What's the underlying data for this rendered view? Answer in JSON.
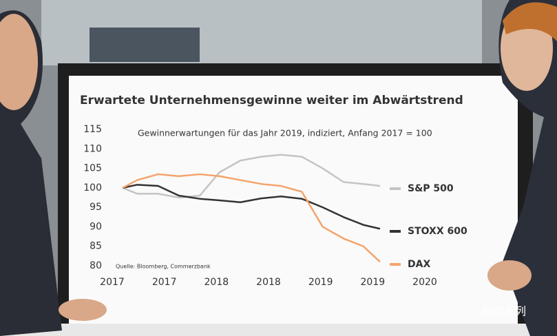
{
  "chart_data": {
    "type": "line",
    "title": "Erwartete Unternehmensgewinne weiter im Abwärtstrend",
    "subtitle": "Gewinnerwartungen für das Jahr 2019, indiziert, Anfang 2017 = 100",
    "source": "Quelle: Bloomberg, Commerzbank",
    "watermark": "微观系列",
    "x": [
      2017.1,
      2017.24,
      2017.44,
      2017.64,
      2017.84,
      2018.03,
      2018.23,
      2018.43,
      2018.62,
      2018.82,
      2019.02,
      2019.22,
      2019.41,
      2019.57
    ],
    "series": [
      {
        "name": "S&P 500",
        "color": "#c4c4c4",
        "values": [
          100,
          98.5,
          98.5,
          97.5,
          98,
          104,
          107,
          108,
          108.5,
          108,
          105,
          101.5,
          101,
          100.5
        ]
      },
      {
        "name": "STOXX 600",
        "color": "#333333",
        "values": [
          100,
          100.8,
          100.5,
          98,
          97.2,
          96.8,
          96.3,
          97.3,
          97.8,
          97.2,
          95,
          92.5,
          90.5,
          89.5
        ]
      },
      {
        "name": "DAX",
        "color": "#f4a46b",
        "values": [
          100,
          102,
          103.5,
          103,
          103.5,
          103,
          102,
          101,
          100.5,
          99,
          90,
          87,
          85,
          81
        ]
      }
    ],
    "xlim": [
      2017,
      2020
    ],
    "xticks": [
      {
        "value": 2017,
        "label": "2017"
      },
      {
        "value": 2017.5,
        "label": "2017"
      },
      {
        "value": 2018,
        "label": "2018"
      },
      {
        "value": 2018.5,
        "label": "2018"
      },
      {
        "value": 2019,
        "label": "2019"
      },
      {
        "value": 2019.5,
        "label": "2019"
      },
      {
        "value": 2020,
        "label": "2020"
      }
    ],
    "ylim": [
      80,
      115
    ],
    "yticks": [
      80,
      85,
      90,
      95,
      100,
      105,
      110,
      115
    ],
    "grid": false
  }
}
